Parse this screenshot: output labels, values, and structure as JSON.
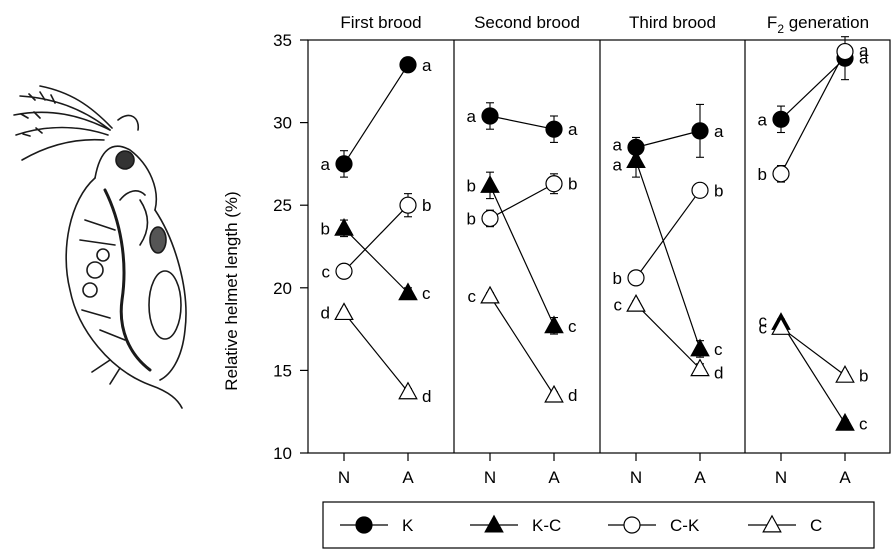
{
  "chart_data": {
    "type": "line",
    "ylabel": "Relative helmet length (%)",
    "ylim": [
      10,
      35
    ],
    "yticks": [
      10,
      15,
      20,
      25,
      30,
      35
    ],
    "categories": [
      "N",
      "A"
    ],
    "grid": false,
    "legend_placement": "bottom",
    "panels": [
      {
        "title": "First brood",
        "series": [
          {
            "name": "K",
            "values": [
              27.5,
              33.5
            ],
            "errors": [
              0.8,
              0.3
            ],
            "letters": [
              "a",
              "a"
            ]
          },
          {
            "name": "K-C",
            "values": [
              23.6,
              19.7
            ],
            "errors": [
              0.5,
              0.3
            ],
            "letters": [
              "b",
              "c"
            ]
          },
          {
            "name": "C-K",
            "values": [
              21.0,
              25.0
            ],
            "errors": [
              0.2,
              0.7
            ],
            "letters": [
              "c",
              "b"
            ]
          },
          {
            "name": "C",
            "values": [
              18.5,
              13.7
            ],
            "errors": [
              0.2,
              0.2
            ],
            "letters": [
              "d",
              "d"
            ]
          }
        ]
      },
      {
        "title": "Second brood",
        "series": [
          {
            "name": "K",
            "values": [
              30.4,
              29.6
            ],
            "errors": [
              0.8,
              0.8
            ],
            "letters": [
              "a",
              "a"
            ]
          },
          {
            "name": "K-C",
            "values": [
              26.2,
              17.7
            ],
            "errors": [
              0.8,
              0.5
            ],
            "letters": [
              "b",
              "c"
            ]
          },
          {
            "name": "C-K",
            "values": [
              24.2,
              26.3
            ],
            "errors": [
              0.5,
              0.6
            ],
            "letters": [
              "b",
              "b"
            ]
          },
          {
            "name": "C",
            "values": [
              19.5,
              13.5
            ],
            "errors": [
              0.2,
              0.2
            ],
            "letters": [
              "c",
              "d"
            ]
          }
        ]
      },
      {
        "title": "Third brood",
        "series": [
          {
            "name": "K",
            "values": [
              28.5,
              29.5
            ],
            "errors": [
              0.6,
              1.6
            ],
            "letters": [
              "a",
              "a"
            ]
          },
          {
            "name": "K-C",
            "values": [
              27.7,
              16.3
            ],
            "errors": [
              1.0,
              0.5
            ],
            "letters": [
              "a",
              "c"
            ]
          },
          {
            "name": "C-K",
            "values": [
              20.6,
              25.9
            ],
            "errors": [
              0.2,
              0.2
            ],
            "letters": [
              "b",
              "b"
            ]
          },
          {
            "name": "C",
            "values": [
              19.0,
              15.1
            ],
            "errors": [
              0.2,
              0.3
            ],
            "letters": [
              "c",
              "d"
            ]
          }
        ]
      },
      {
        "title_main": "F",
        "title_sub": "2",
        "title_rest": " generation",
        "series": [
          {
            "name": "K",
            "values": [
              30.2,
              33.9
            ],
            "errors": [
              0.8,
              1.3
            ],
            "letters": [
              "a",
              "a"
            ]
          },
          {
            "name": "K-C",
            "values": [
              17.9,
              11.8
            ],
            "errors": [
              0.2,
              0.2
            ],
            "letters": [
              "c",
              "c"
            ]
          },
          {
            "name": "C-K",
            "values": [
              26.9,
              34.3
            ],
            "errors": [
              0.5,
              0.4
            ],
            "letters": [
              "b",
              "a"
            ]
          },
          {
            "name": "C",
            "values": [
              17.6,
              14.7
            ],
            "errors": [
              0.2,
              0.2
            ],
            "letters": [
              "c",
              "b"
            ]
          }
        ]
      }
    ],
    "legend": [
      {
        "name": "K",
        "marker": "circle",
        "filled": true
      },
      {
        "name": "K-C",
        "marker": "triangle",
        "filled": true
      },
      {
        "name": "C-K",
        "marker": "circle",
        "filled": false
      },
      {
        "name": "C",
        "marker": "triangle",
        "filled": false
      }
    ]
  },
  "illustration": {
    "subject": "daphnia-drawing"
  }
}
